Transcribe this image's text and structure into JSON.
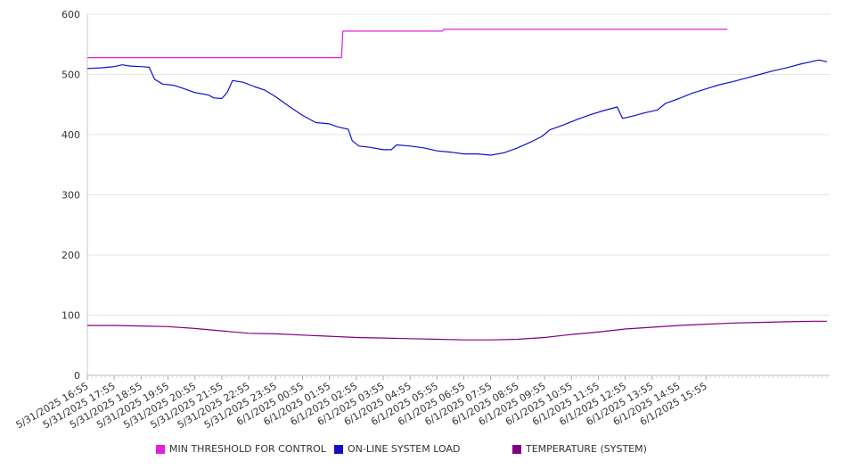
{
  "chart_data": {
    "type": "line",
    "title": "",
    "xlabel": "",
    "ylabel": "",
    "ylim": [
      0,
      600
    ],
    "yticks": [
      0,
      100,
      200,
      300,
      400,
      500,
      600
    ],
    "grid": true,
    "legend_position": "bottom",
    "categories": [
      "5/31/2025 16:55",
      "5/31/2025 17:55",
      "5/31/2025 18:55",
      "5/31/2025 19:55",
      "5/31/2025 20:55",
      "5/31/2025 21:55",
      "5/31/2025 22:55",
      "5/31/2025 23:55",
      "6/1/2025 00:55",
      "6/1/2025 01:55",
      "6/1/2025 02:55",
      "6/1/2025 03:55",
      "6/1/2025 04:55",
      "6/1/2025 05:55",
      "6/1/2025 06:55",
      "6/1/2025 07:55",
      "6/1/2025 08:55",
      "6/1/2025 09:55",
      "6/1/2025 10:55",
      "6/1/2025 11:55",
      "6/1/2025 12:55",
      "6/1/2025 13:55",
      "6/1/2025 14:55",
      "6/1/2025 15:55"
    ],
    "series": [
      {
        "name": "MIN THRESHOLD FOR CONTROL",
        "color": "#e020e0",
        "points": [
          [
            0,
            528
          ],
          [
            9.45,
            528
          ],
          [
            9.5,
            572
          ],
          [
            13.2,
            572
          ],
          [
            13.25,
            575
          ],
          [
            23.8,
            575
          ]
        ]
      },
      {
        "name": "ON-LINE SYSTEM LOAD",
        "color": "#1010c8",
        "points": [
          [
            0,
            510
          ],
          [
            0.5,
            511
          ],
          [
            1,
            513
          ],
          [
            1.3,
            516
          ],
          [
            1.6,
            514
          ],
          [
            2,
            513
          ],
          [
            2.3,
            512
          ],
          [
            2.5,
            492
          ],
          [
            2.8,
            484
          ],
          [
            3.2,
            482
          ],
          [
            3.5,
            478
          ],
          [
            4,
            470
          ],
          [
            4.5,
            466
          ],
          [
            4.7,
            461
          ],
          [
            5,
            460
          ],
          [
            5.2,
            470
          ],
          [
            5.4,
            490
          ],
          [
            5.8,
            487
          ],
          [
            6.2,
            480
          ],
          [
            6.6,
            474
          ],
          [
            7,
            463
          ],
          [
            7.5,
            447
          ],
          [
            8,
            432
          ],
          [
            8.5,
            420
          ],
          [
            9,
            418
          ],
          [
            9.3,
            413
          ],
          [
            9.7,
            409
          ],
          [
            9.85,
            390
          ],
          [
            10.1,
            381
          ],
          [
            10.5,
            379
          ],
          [
            11,
            375
          ],
          [
            11.3,
            375
          ],
          [
            11.5,
            383
          ],
          [
            12,
            381
          ],
          [
            12.5,
            378
          ],
          [
            13,
            373
          ],
          [
            13.5,
            371
          ],
          [
            14,
            368
          ],
          [
            14.5,
            368
          ],
          [
            15,
            366
          ],
          [
            15.5,
            370
          ],
          [
            16,
            378
          ],
          [
            16.5,
            388
          ],
          [
            16.9,
            397
          ],
          [
            17.2,
            408
          ],
          [
            17.7,
            416
          ],
          [
            18.2,
            425
          ],
          [
            18.7,
            433
          ],
          [
            19.2,
            440
          ],
          [
            19.7,
            446
          ],
          [
            19.9,
            427
          ],
          [
            20.3,
            431
          ],
          [
            20.7,
            436
          ],
          [
            21.2,
            441
          ],
          [
            21.5,
            452
          ],
          [
            22,
            460
          ],
          [
            22.5,
            469
          ],
          [
            23,
            476
          ],
          [
            23.5,
            483
          ],
          [
            24,
            488
          ],
          [
            24.5,
            494
          ],
          [
            25,
            500
          ],
          [
            25.5,
            506
          ],
          [
            26,
            511
          ],
          [
            26.5,
            517
          ],
          [
            27,
            522
          ],
          [
            27.2,
            524
          ],
          [
            27.5,
            521
          ]
        ]
      },
      {
        "name": "TEMPERATURE (SYSTEM)",
        "color": "#800080",
        "points": [
          [
            0,
            83
          ],
          [
            1,
            83
          ],
          [
            2,
            82
          ],
          [
            3,
            81
          ],
          [
            4,
            78
          ],
          [
            5,
            74
          ],
          [
            6,
            70
          ],
          [
            7,
            69
          ],
          [
            8,
            67
          ],
          [
            9,
            65
          ],
          [
            10,
            63
          ],
          [
            11,
            62
          ],
          [
            12,
            61
          ],
          [
            13,
            60
          ],
          [
            14,
            59
          ],
          [
            15,
            59
          ],
          [
            16,
            60
          ],
          [
            17,
            63
          ],
          [
            18,
            68
          ],
          [
            19,
            72
          ],
          [
            20,
            77
          ],
          [
            21,
            80
          ],
          [
            22,
            83
          ],
          [
            23,
            85
          ],
          [
            24,
            87
          ],
          [
            25,
            88
          ],
          [
            26,
            89
          ],
          [
            27,
            90
          ],
          [
            27.5,
            90
          ]
        ]
      }
    ]
  }
}
